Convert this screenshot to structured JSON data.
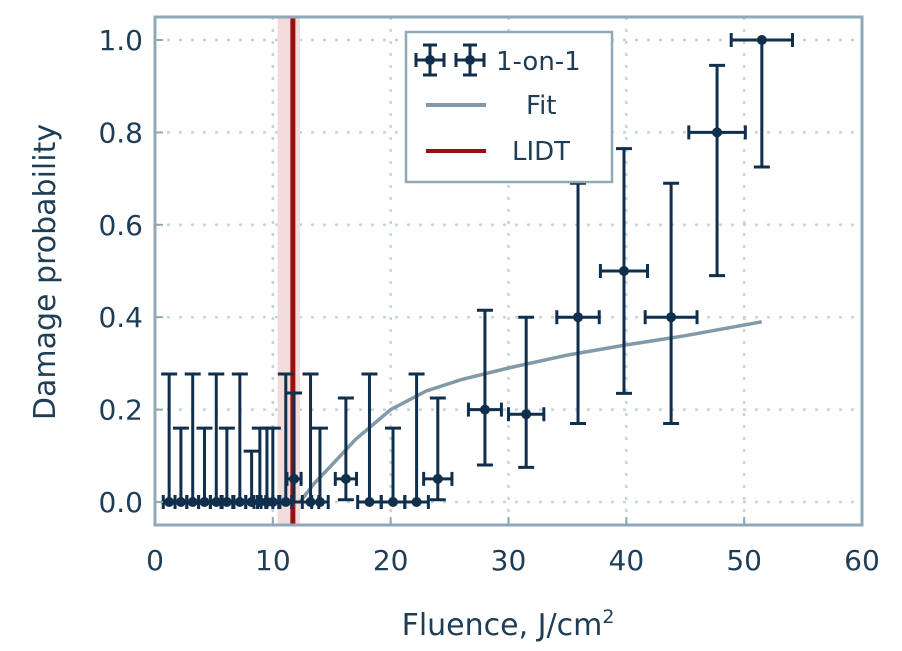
{
  "chart_data": {
    "type": "scatter",
    "title": "",
    "xlabel": "Fluence, J/cm",
    "xlabel_superscript": "2",
    "ylabel": "Damage probability",
    "xlim": [
      0,
      60
    ],
    "ylim": [
      -0.05,
      1.05
    ],
    "xticks": [
      0,
      10,
      20,
      30,
      40,
      50,
      60
    ],
    "xtick_labels": [
      "0",
      "10",
      "20",
      "30",
      "40",
      "50",
      "60"
    ],
    "yticks": [
      0.0,
      0.2,
      0.4,
      0.6,
      0.8,
      1.0
    ],
    "ytick_labels": [
      "0.0",
      "0.2",
      "0.4",
      "0.6",
      "0.8",
      "1.0"
    ],
    "grid": true,
    "legend_position": "top-center",
    "colors": {
      "points": "#0f2f4c",
      "fit": "#8299a9",
      "lidt": "#9b0f0f",
      "lidt_band": "#f2dcdc",
      "frame": "#8fa9b8",
      "grid": "#c6d4dc"
    },
    "series": [
      {
        "name": "1-on-1",
        "kind": "errorbar",
        "points": [
          {
            "x": 1.2,
            "y": 0,
            "ylo": 0,
            "yhi": 0.277,
            "xerr": 0.5
          },
          {
            "x": 2.2,
            "y": 0,
            "ylo": 0,
            "yhi": 0.16,
            "xerr": 0.5
          },
          {
            "x": 3.2,
            "y": 0,
            "ylo": 0,
            "yhi": 0.277,
            "xerr": 0.5
          },
          {
            "x": 4.2,
            "y": 0,
            "ylo": 0,
            "yhi": 0.16,
            "xerr": 0.5
          },
          {
            "x": 5.2,
            "y": 0,
            "ylo": 0,
            "yhi": 0.277,
            "xerr": 0.5
          },
          {
            "x": 6.1,
            "y": 0,
            "ylo": 0,
            "yhi": 0.16,
            "xerr": 0.5
          },
          {
            "x": 7.2,
            "y": 0,
            "ylo": 0,
            "yhi": 0.277,
            "xerr": 0.5
          },
          {
            "x": 8.2,
            "y": 0,
            "ylo": 0,
            "yhi": 0.11,
            "xerr": 0.5
          },
          {
            "x": 8.9,
            "y": 0,
            "ylo": 0,
            "yhi": 0.16,
            "xerr": 0.5
          },
          {
            "x": 9.5,
            "y": 0,
            "ylo": 0,
            "yhi": 0.16,
            "xerr": 0.5
          },
          {
            "x": 10.0,
            "y": 0,
            "ylo": 0,
            "yhi": 0.16,
            "xerr": 0.5
          },
          {
            "x": 11.1,
            "y": 0,
            "ylo": 0,
            "yhi": 0.277,
            "xerr": 0.5
          },
          {
            "x": 11.8,
            "y": 0.05,
            "ylo": 0.0,
            "yhi": 0.236,
            "xerr": 0.6
          },
          {
            "x": 13.2,
            "y": 0,
            "ylo": 0,
            "yhi": 0.277,
            "xerr": 0.7
          },
          {
            "x": 14.0,
            "y": 0,
            "ylo": 0,
            "yhi": 0.16,
            "xerr": 0.7
          },
          {
            "x": 16.2,
            "y": 0.05,
            "ylo": 0.005,
            "yhi": 0.225,
            "xerr": 0.9
          },
          {
            "x": 18.2,
            "y": 0,
            "ylo": 0,
            "yhi": 0.277,
            "xerr": 1.0
          },
          {
            "x": 20.2,
            "y": 0,
            "ylo": 0,
            "yhi": 0.16,
            "xerr": 1.0
          },
          {
            "x": 22.2,
            "y": 0,
            "ylo": 0,
            "yhi": 0.277,
            "xerr": 1.0
          },
          {
            "x": 24.0,
            "y": 0.05,
            "ylo": 0.005,
            "yhi": 0.225,
            "xerr": 1.2
          },
          {
            "x": 28.0,
            "y": 0.2,
            "ylo": 0.08,
            "yhi": 0.415,
            "xerr": 1.4
          },
          {
            "x": 31.5,
            "y": 0.19,
            "ylo": 0.075,
            "yhi": 0.4,
            "xerr": 1.5
          },
          {
            "x": 35.9,
            "y": 0.4,
            "ylo": 0.17,
            "yhi": 0.69,
            "xerr": 1.8
          },
          {
            "x": 39.8,
            "y": 0.5,
            "ylo": 0.235,
            "yhi": 0.765,
            "xerr": 2.0
          },
          {
            "x": 43.8,
            "y": 0.4,
            "ylo": 0.17,
            "yhi": 0.69,
            "xerr": 2.2
          },
          {
            "x": 47.7,
            "y": 0.8,
            "ylo": 0.49,
            "yhi": 0.945,
            "xerr": 2.4
          },
          {
            "x": 51.5,
            "y": 1.0,
            "ylo": 0.725,
            "yhi": 1.0,
            "xerr": 2.6
          }
        ]
      },
      {
        "name": "Fit",
        "kind": "line",
        "x": [
          12.3,
          13.5,
          15,
          17,
          20,
          23,
          26,
          30,
          35,
          40,
          45,
          51.5
        ],
        "y": [
          0.0,
          0.04,
          0.08,
          0.135,
          0.2,
          0.24,
          0.265,
          0.29,
          0.318,
          0.34,
          0.36,
          0.39
        ]
      },
      {
        "name": "LIDT",
        "kind": "vline",
        "x": 11.7,
        "band": [
          10.4,
          12.3
        ]
      }
    ]
  }
}
